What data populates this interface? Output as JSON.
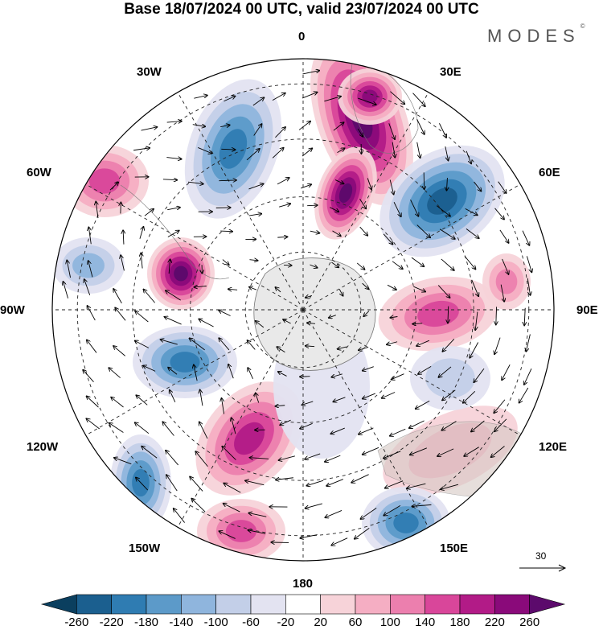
{
  "title": "Base 18/07/2024 00 UTC, valid 23/07/2024 00 UTC",
  "brand": "MODES",
  "brand_mark": "©",
  "map": {
    "projection": "south polar stereographic",
    "longitude_labels": [
      "0",
      "30E",
      "60E",
      "90E",
      "120E",
      "150E",
      "180",
      "150W",
      "120W",
      "90W",
      "60W",
      "30W"
    ]
  },
  "reference_vector": {
    "value": "30"
  },
  "colorbar": {
    "labels": [
      "-260",
      "-220",
      "-180",
      "-140",
      "-100",
      "-60",
      "-20",
      "20",
      "60",
      "100",
      "140",
      "180",
      "220",
      "260"
    ],
    "colors": [
      "#0b3f5f",
      "#1b5f8f",
      "#2f7cb2",
      "#5c9ac9",
      "#8fb5dd",
      "#c3cfe8",
      "#e3e3f1",
      "#ffffff",
      "#f7d3d9",
      "#f5aec3",
      "#ec7fae",
      "#d9469a",
      "#b21b87",
      "#8a0a7a",
      "#5c0a6c"
    ]
  },
  "features": {
    "positive_colors": [
      "#f7d3d9",
      "#f5aec3",
      "#ec7fae",
      "#d9469a",
      "#b21b87",
      "#8a0a7a",
      "#5c0a6c"
    ],
    "negative_colors": [
      "#e3e3f1",
      "#c3cfe8",
      "#8fb5dd",
      "#5c9ac9",
      "#2f7cb2",
      "#1b5f8f"
    ]
  }
}
